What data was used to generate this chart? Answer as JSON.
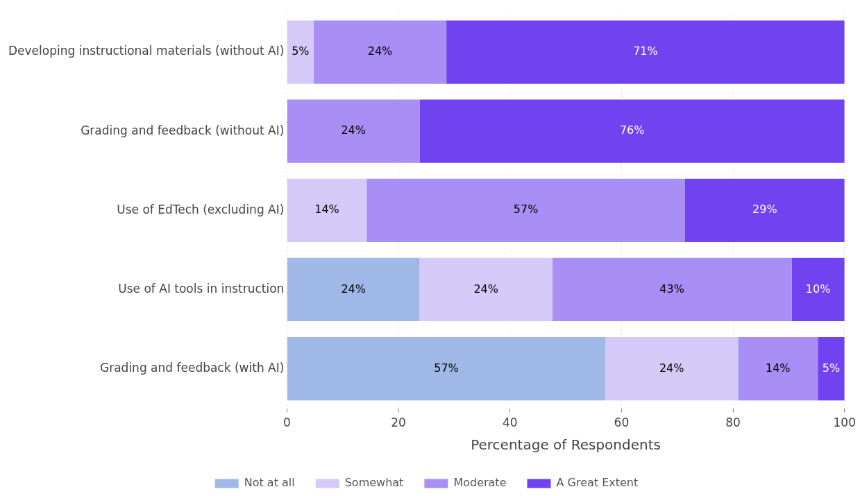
{
  "chart_data": {
    "type": "bar",
    "orientation": "horizontal",
    "stacked": true,
    "xlabel": "Percentage of Respondents",
    "categories": [
      "Developing instructional materials (without AI)",
      "Grading and feedback (without AI)",
      "Use of EdTech (excluding AI)",
      "Use of AI tools in instruction",
      "Grading and feedback (with AI)"
    ],
    "series": [
      {
        "name": "Not at all",
        "color": "#a0b8e8",
        "values": [
          null,
          null,
          null,
          23.8,
          57.1
        ],
        "value_labels": [
          null,
          null,
          null,
          "24%",
          "57%"
        ]
      },
      {
        "name": "Somewhat",
        "color": "#d5caf7",
        "values": [
          4.8,
          null,
          14.3,
          23.8,
          23.8
        ],
        "value_labels": [
          "5%",
          null,
          "14%",
          "24%",
          "24%"
        ]
      },
      {
        "name": "Moderate",
        "color": "#a88ef5",
        "values": [
          23.8,
          23.8,
          57.1,
          42.9,
          14.3
        ],
        "value_labels": [
          "24%",
          "24%",
          "57%",
          "43%",
          "14%"
        ]
      },
      {
        "name": "A Great Extent",
        "color": "#7142ef",
        "values": [
          71.4,
          76.2,
          28.6,
          9.5,
          4.8
        ],
        "value_labels": [
          "71%",
          "76%",
          "29%",
          "10%",
          "5%"
        ]
      }
    ],
    "xlim": [
      0,
      100
    ],
    "xticks": [
      0,
      20,
      40,
      60,
      80,
      100
    ],
    "grid": "x",
    "legend": "bottom"
  }
}
